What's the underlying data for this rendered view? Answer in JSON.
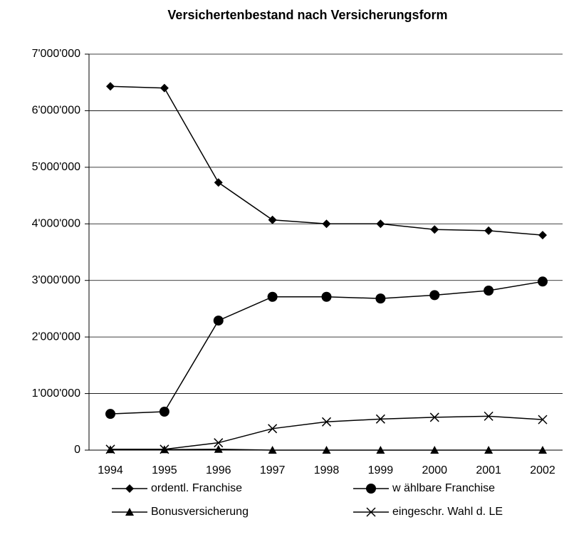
{
  "chart_data": {
    "type": "line",
    "title": "Versichertenbestand nach Versicherungsform",
    "categories": [
      "1994",
      "1995",
      "1996",
      "1997",
      "1998",
      "1999",
      "2000",
      "2001",
      "2002"
    ],
    "ylim": [
      0,
      7000000
    ],
    "yticks": [
      0,
      {
        "value": 1000000,
        "label": "1'000'000"
      },
      {
        "value": 2000000,
        "label": "2'000'000"
      },
      {
        "value": 3000000,
        "label": "3'000'000"
      },
      {
        "value": 4000000,
        "label": "4'000'000"
      },
      {
        "value": 5000000,
        "label": "5'000'000"
      },
      {
        "value": 6000000,
        "label": "6'000'000"
      },
      {
        "value": 7000000,
        "label": "7'000'000"
      }
    ],
    "grid": true,
    "series": [
      {
        "name": "ordentl. Franchise",
        "color": "#000000",
        "marker": "diamond",
        "values": [
          6430000,
          6400000,
          4730000,
          4070000,
          4000000,
          4000000,
          3900000,
          3880000,
          3800000
        ]
      },
      {
        "name": "w ählbare Franchise",
        "color": "#000000",
        "marker": "circle",
        "values": [
          640000,
          680000,
          2290000,
          2710000,
          2710000,
          2680000,
          2740000,
          2820000,
          2980000
        ]
      },
      {
        "name": "Bonusversicherung",
        "color": "#000000",
        "marker": "triangle",
        "values": [
          10000,
          10000,
          15000,
          0,
          0,
          0,
          0,
          0,
          0
        ]
      },
      {
        "name": "eingeschr. Wahl d. LE",
        "color": "#000000",
        "marker": "x",
        "values": [
          15000,
          15000,
          130000,
          380000,
          500000,
          550000,
          580000,
          600000,
          540000
        ]
      }
    ]
  }
}
